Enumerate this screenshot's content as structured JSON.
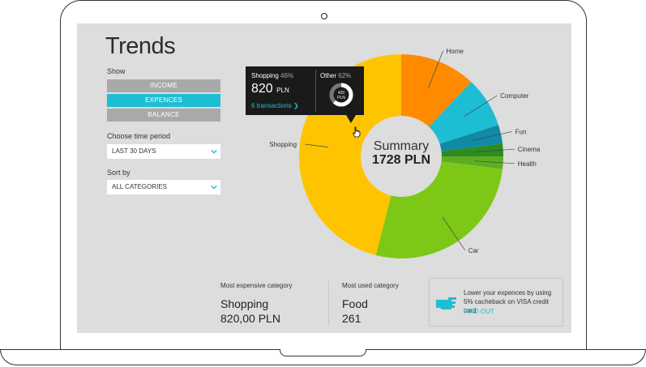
{
  "page": {
    "title": "Trends",
    "show_label": "Show",
    "show_options": [
      "INCOME",
      "EXPENCES",
      "BALANCE"
    ],
    "show_selected": "EXPENCES",
    "time_label": "Choose time period",
    "time_value": "LAST 30 DAYS",
    "sort_label": "Sort by",
    "sort_value": "ALL CATEGORIES"
  },
  "colors": {
    "accent": "#1dbed4",
    "panel": "#dcdddc",
    "dark": "#1a1a1a"
  },
  "summary": {
    "title": "Summary",
    "value": "1728 PLN"
  },
  "tooltip": {
    "left_name": "Shopping",
    "left_pct": "46%",
    "left_amount": "820",
    "left_unit": "PLN",
    "left_link": "6 transactions",
    "right_name": "Other",
    "right_pct": "62%",
    "donut_value": "420",
    "donut_unit": "PLN"
  },
  "chart_data": {
    "type": "pie",
    "categories": [
      "Home",
      "Computer",
      "Fun",
      "Cinema",
      "Health",
      "Car",
      "Shopping"
    ],
    "values": [
      12,
      8,
      3,
      2,
      2,
      27,
      46
    ],
    "colors": [
      "#ff8a00",
      "#1dbed4",
      "#118aa6",
      "#2e8b1f",
      "#5dae22",
      "#7dc816",
      "#ffc400"
    ]
  },
  "stats": {
    "expensive_label": "Most expensive category",
    "expensive_name": "Shopping",
    "expensive_value": "820,00 PLN",
    "used_label": "Most used category",
    "used_name": "Food",
    "used_value": "261"
  },
  "promo": {
    "text": "Lower your expences by using 5% cacheback on VISA credit card",
    "link": "FIND OUT",
    "icon": "pointing-hand-icon"
  }
}
